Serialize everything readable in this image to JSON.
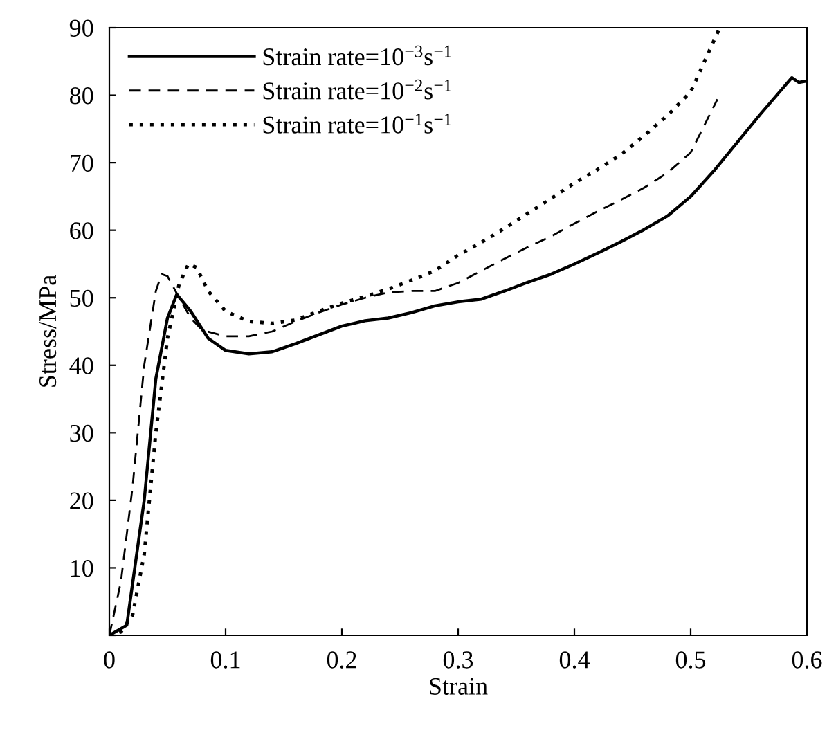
{
  "chart_data": {
    "type": "line",
    "xlabel": "Strain",
    "ylabel": "Stress/MPa",
    "xlim": [
      0,
      0.6
    ],
    "ylim": [
      0,
      90
    ],
    "xticks": [
      0,
      0.1,
      0.2,
      0.3,
      0.4,
      0.5,
      0.6
    ],
    "yticks": [
      {
        "value": 0,
        "label": null
      },
      10,
      20,
      30,
      40,
      50,
      60,
      70,
      80,
      90
    ],
    "grid": false,
    "legend": "top left",
    "marker": "none",
    "series": [
      {
        "name": "Strain rate=10$^{−3}$s$^{−1}$",
        "color": "#000000",
        "line_style": "solid",
        "x": [
          0,
          0.015,
          0.03,
          0.04,
          0.05,
          0.058,
          0.07,
          0.085,
          0.1,
          0.12,
          0.14,
          0.16,
          0.18,
          0.2,
          0.22,
          0.24,
          0.26,
          0.28,
          0.3,
          0.32,
          0.34,
          0.36,
          0.38,
          0.4,
          0.42,
          0.44,
          0.46,
          0.48,
          0.5,
          0.52,
          0.54,
          0.56,
          0.58,
          0.587,
          0.593,
          0.6
        ],
        "values": [
          0,
          1.5,
          20,
          38,
          47,
          50.5,
          48,
          44,
          42.2,
          41.7,
          42,
          43.2,
          44.5,
          45.8,
          46.6,
          47,
          47.8,
          48.8,
          49.4,
          49.8,
          51,
          52.3,
          53.5,
          55,
          56.6,
          58.3,
          60.1,
          62.1,
          65,
          68.8,
          73,
          77.2,
          81.2,
          82.6,
          81.9,
          82.1
        ]
      },
      {
        "name": "Strain rate=10$^{−2}$s$^{−1}$",
        "color": "#000000",
        "line_style": "dashed",
        "x": [
          0,
          0.01,
          0.02,
          0.03,
          0.04,
          0.045,
          0.05,
          0.06,
          0.07,
          0.08,
          0.1,
          0.12,
          0.14,
          0.16,
          0.18,
          0.2,
          0.22,
          0.24,
          0.26,
          0.28,
          0.3,
          0.32,
          0.34,
          0.36,
          0.38,
          0.4,
          0.42,
          0.44,
          0.46,
          0.48,
          0.5,
          0.523
        ],
        "values": [
          0,
          8,
          22,
          40,
          51,
          53.5,
          53.2,
          50,
          47,
          45.2,
          44.3,
          44.3,
          45,
          46.5,
          47.8,
          49,
          50,
          50.8,
          51,
          51,
          52.2,
          54,
          55.8,
          57.5,
          59.1,
          61,
          62.8,
          64.5,
          66.3,
          68.5,
          71.5,
          79.4
        ]
      },
      {
        "name": "Strain rate=10$^{−1}$s$^{−1}$",
        "color": "#000000",
        "line_style": "dotted",
        "x": [
          0,
          0.01,
          0.02,
          0.03,
          0.04,
          0.05,
          0.06,
          0.068,
          0.075,
          0.085,
          0.1,
          0.12,
          0.14,
          0.16,
          0.18,
          0.2,
          0.22,
          0.24,
          0.26,
          0.28,
          0.3,
          0.32,
          0.34,
          0.36,
          0.38,
          0.4,
          0.42,
          0.44,
          0.46,
          0.48,
          0.5,
          0.525
        ],
        "values": [
          0,
          0.5,
          3,
          12,
          30,
          44,
          52,
          55,
          54.5,
          51,
          48,
          46.5,
          46.2,
          46.7,
          48,
          49.2,
          50.2,
          51.3,
          52.6,
          54,
          56.3,
          58.2,
          60.3,
          62.5,
          64.7,
          67,
          69,
          71.2,
          74,
          77,
          80.5,
          90
        ]
      }
    ]
  }
}
